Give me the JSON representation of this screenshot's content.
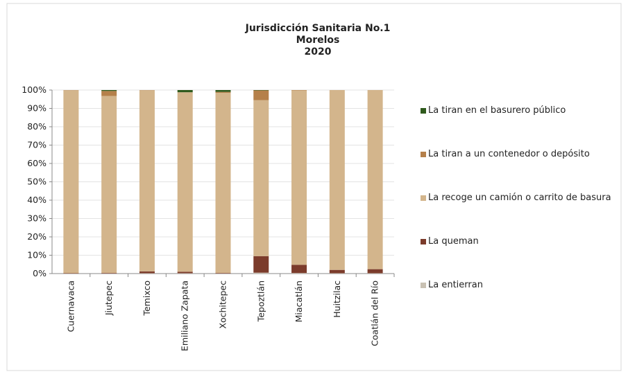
{
  "chart_data": {
    "type": "stacked-bar",
    "title": [
      "Jurisdicción Sanitaria No.1",
      "Morelos",
      "2020"
    ],
    "categories": [
      "Cuernavaca",
      "Jiutepec",
      "Temixco",
      "Emiliano Zapata",
      "Xochitepec",
      "Tepoztlán",
      "Miacatlán",
      "Huitzilac",
      "Coatlán del Río"
    ],
    "series": [
      {
        "name": "La entierran",
        "color": "#c9c1b3",
        "values": [
          0,
          0,
          0.2,
          0.2,
          0,
          0.5,
          0.3,
          0.2,
          0.2
        ]
      },
      {
        "name": "La queman",
        "color": "#7b3b2b",
        "values": [
          0.2,
          0.3,
          1,
          0.8,
          0.3,
          9,
          4.5,
          1.8,
          2.2
        ]
      },
      {
        "name": "La recoge un camión o carrito de basura",
        "color": "#d3b58c",
        "values": [
          99.7,
          96.5,
          98.7,
          97.8,
          98.2,
          85,
          95,
          98,
          97.6
        ]
      },
      {
        "name": "La tiran a un contenedor o depósito",
        "color": "#b5804a",
        "values": [
          0.1,
          2.7,
          0.1,
          0,
          0.5,
          5.3,
          0.2,
          0,
          0
        ]
      },
      {
        "name": "La tiran en el basurero público",
        "color": "#2f5a1d",
        "values": [
          0,
          0.5,
          0,
          1.2,
          1,
          0.2,
          0,
          0,
          0
        ]
      }
    ],
    "ylim": [
      0,
      100
    ],
    "yticks": [
      {
        "value": 0,
        "label": "0%"
      },
      {
        "value": 10,
        "label": "10%"
      },
      {
        "value": 20,
        "label": "20%"
      },
      {
        "value": 30,
        "label": "30%"
      },
      {
        "value": 40,
        "label": "40%"
      },
      {
        "value": 50,
        "label": "50%"
      },
      {
        "value": 60,
        "label": "60%"
      },
      {
        "value": 70,
        "label": "70%"
      },
      {
        "value": 80,
        "label": "80%"
      },
      {
        "value": 90,
        "label": "90%"
      },
      {
        "value": 100,
        "label": "100%"
      }
    ],
    "grid": true,
    "legend": "right"
  }
}
